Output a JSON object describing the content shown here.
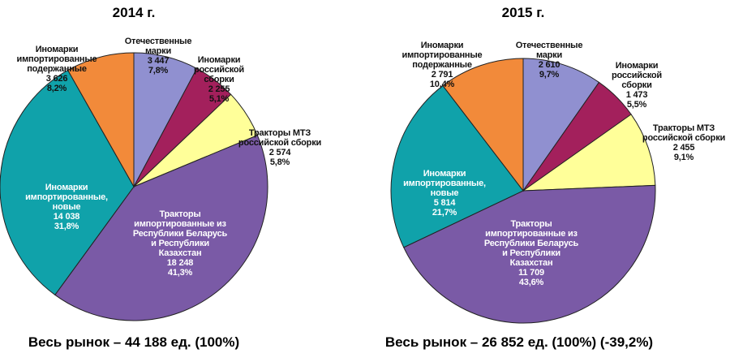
{
  "chart_data": [
    {
      "type": "pie",
      "title": "2014 г.",
      "categories": [
        "Отечественные марки",
        "Иномарки российской сборки",
        "Тракторы МТЗ российской сборки",
        "Тракторы импортированные из Республики Беларусь и Республики Казахстан",
        "Иномарки импортированные, новые",
        "Иномарки импортированные подержанные"
      ],
      "values": [
        3447,
        2255,
        2574,
        18248,
        14038,
        3626
      ],
      "value_labels": [
        "3 447",
        "2 255",
        "2 574",
        "18 248",
        "14 038",
        "3 626"
      ],
      "shares": [
        7.8,
        5.1,
        5.8,
        41.3,
        31.8,
        8.2
      ],
      "share_labels": [
        "7,8%",
        "5,1%",
        "5,8%",
        "41,3%",
        "31,8%",
        "8,2%"
      ],
      "colors": [
        "#9090d0",
        "#a3205c",
        "#ffff99",
        "#7a5aa6",
        "#10a2aa",
        "#f28a3a"
      ],
      "note": "Весь рынок – 44 188 ед. (100%)"
    },
    {
      "type": "pie",
      "title": "2015 г.",
      "categories": [
        "Отечественные марки",
        "Иномарки российской сборки",
        "Тракторы МТЗ российской сборки",
        "Тракторы импортированные из Республики Беларусь и Республики Казахстан",
        "Иномарки импортированные, новые",
        "Иномарки импортированные подержанные"
      ],
      "values": [
        2610,
        1473,
        2455,
        11709,
        5814,
        2791
      ],
      "value_labels": [
        "2 610",
        "1 473",
        "2 455",
        "11 709",
        "5 814",
        "2 791"
      ],
      "shares": [
        9.7,
        5.5,
        9.1,
        43.6,
        21.7,
        10.4
      ],
      "share_labels": [
        "9,7%",
        "5,5%",
        "9,1%",
        "43,6%",
        "21,7%",
        "10,4%"
      ],
      "colors": [
        "#9090d0",
        "#a3205c",
        "#ffff99",
        "#7a5aa6",
        "#10a2aa",
        "#f28a3a"
      ],
      "note": "Весь рынок – 26 852 ед. (100%) (-39,2%)"
    }
  ]
}
